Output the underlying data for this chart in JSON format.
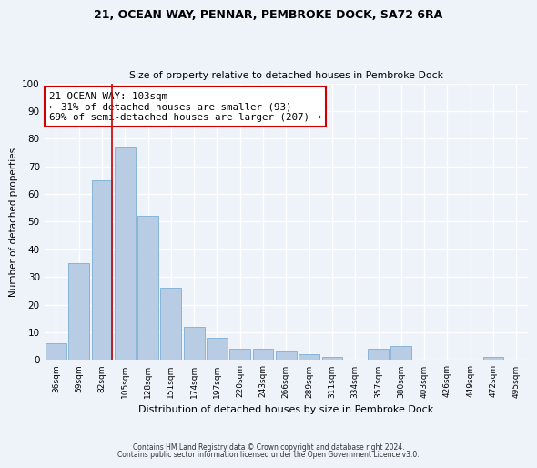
{
  "title": "21, OCEAN WAY, PENNAR, PEMBROKE DOCK, SA72 6RA",
  "subtitle": "Size of property relative to detached houses in Pembroke Dock",
  "xlabel": "Distribution of detached houses by size in Pembroke Dock",
  "ylabel": "Number of detached properties",
  "bar_color": "#b8cce4",
  "bar_edge_color": "#7bafd4",
  "categories": [
    "36sqm",
    "59sqm",
    "82sqm",
    "105sqm",
    "128sqm",
    "151sqm",
    "174sqm",
    "197sqm",
    "220sqm",
    "243sqm",
    "266sqm",
    "289sqm",
    "311sqm",
    "334sqm",
    "357sqm",
    "380sqm",
    "403sqm",
    "426sqm",
    "449sqm",
    "472sqm",
    "495sqm"
  ],
  "values": [
    6,
    35,
    65,
    77,
    52,
    26,
    12,
    8,
    4,
    4,
    3,
    2,
    1,
    0,
    4,
    5,
    0,
    0,
    0,
    1,
    0
  ],
  "vline_color": "#cc0000",
  "annotation_text": "21 OCEAN WAY: 103sqm\n← 31% of detached houses are smaller (93)\n69% of semi-detached houses are larger (207) →",
  "annotation_box_color": "white",
  "annotation_box_edge": "#cc0000",
  "ylim": [
    0,
    100
  ],
  "yticks": [
    0,
    10,
    20,
    30,
    40,
    50,
    60,
    70,
    80,
    90,
    100
  ],
  "footer1": "Contains HM Land Registry data © Crown copyright and database right 2024.",
  "footer2": "Contains public sector information licensed under the Open Government Licence v3.0.",
  "background_color": "#eef2f9",
  "grid_color": "white"
}
